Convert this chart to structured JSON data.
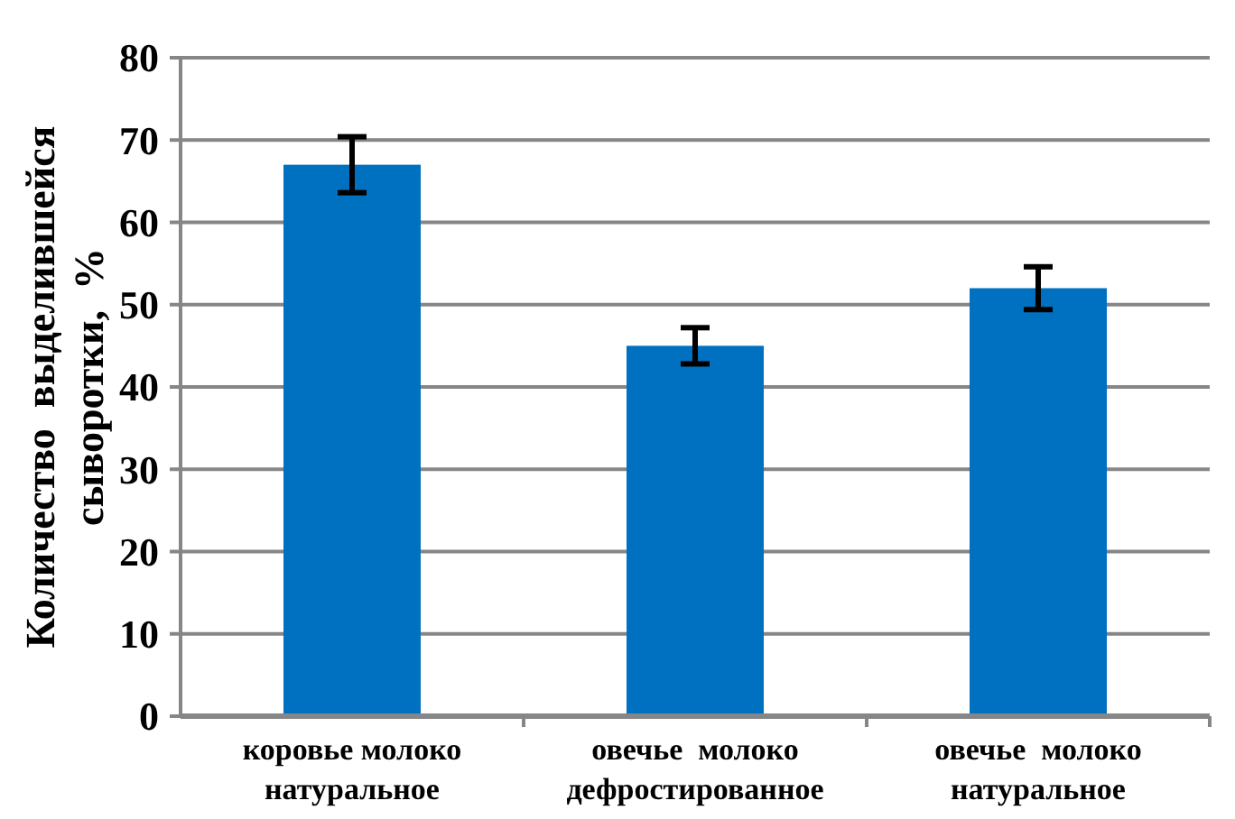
{
  "chart_data": {
    "type": "bar",
    "ylabel": "Количество  выделившейся\nсыворотки,  %",
    "categories": [
      "коровье молоко\nнатуральное",
      "овечье  молоко\nдефростированное",
      "овечье  молоко\nнатуральное"
    ],
    "values": [
      67,
      45,
      52
    ],
    "errors": [
      3.4,
      2.2,
      2.6
    ],
    "color": "#0070c0",
    "ylim": [
      0,
      80
    ],
    "yticks": [
      0,
      10,
      20,
      30,
      40,
      50,
      60,
      70,
      80
    ],
    "grid": "y"
  }
}
